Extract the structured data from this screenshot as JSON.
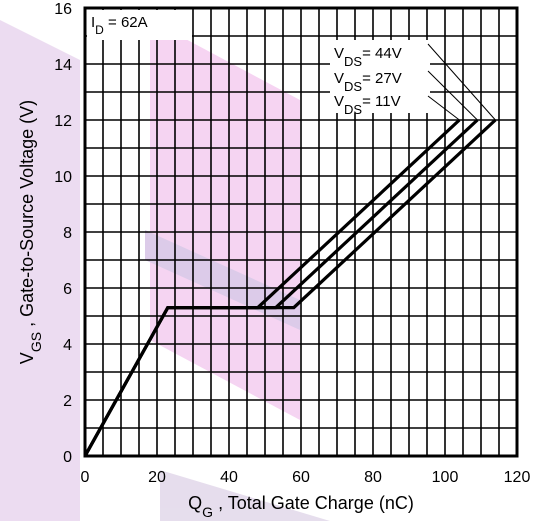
{
  "chart_data": {
    "type": "line",
    "title": "",
    "xlabel": {
      "main": "Q",
      "sub": "G",
      "rest": " , Total Gate Charge (nC)"
    },
    "ylabel": {
      "main": "V",
      "sub": "GS",
      "rest": " , Gate-to-Source Voltage (V)"
    },
    "xlim": [
      0,
      120
    ],
    "ylim": [
      0,
      16
    ],
    "xticks": [
      "0",
      "20",
      "40",
      "60",
      "80",
      "100",
      "120"
    ],
    "yticks": [
      "0",
      "2",
      "4",
      "6",
      "8",
      "10",
      "12",
      "14",
      "16"
    ],
    "grid": true,
    "annotation": {
      "main": "I",
      "sub": "D",
      "rest": " = 62A"
    },
    "legend_position": "top-right",
    "series": [
      {
        "name": {
          "main": "V",
          "sub": "DS",
          "rest": "= 44V"
        },
        "x": [
          0,
          23,
          58,
          114
        ],
        "y": [
          0,
          5.3,
          5.3,
          12
        ]
      },
      {
        "name": {
          "main": "V",
          "sub": "DS",
          "rest": "= 27V"
        },
        "x": [
          0,
          23,
          53,
          109
        ],
        "y": [
          0,
          5.3,
          5.3,
          12
        ]
      },
      {
        "name": {
          "main": "V",
          "sub": "DS",
          "rest": "= 11V"
        },
        "x": [
          0,
          23,
          48,
          104
        ],
        "y": [
          0,
          5.3,
          5.3,
          12
        ]
      }
    ]
  }
}
